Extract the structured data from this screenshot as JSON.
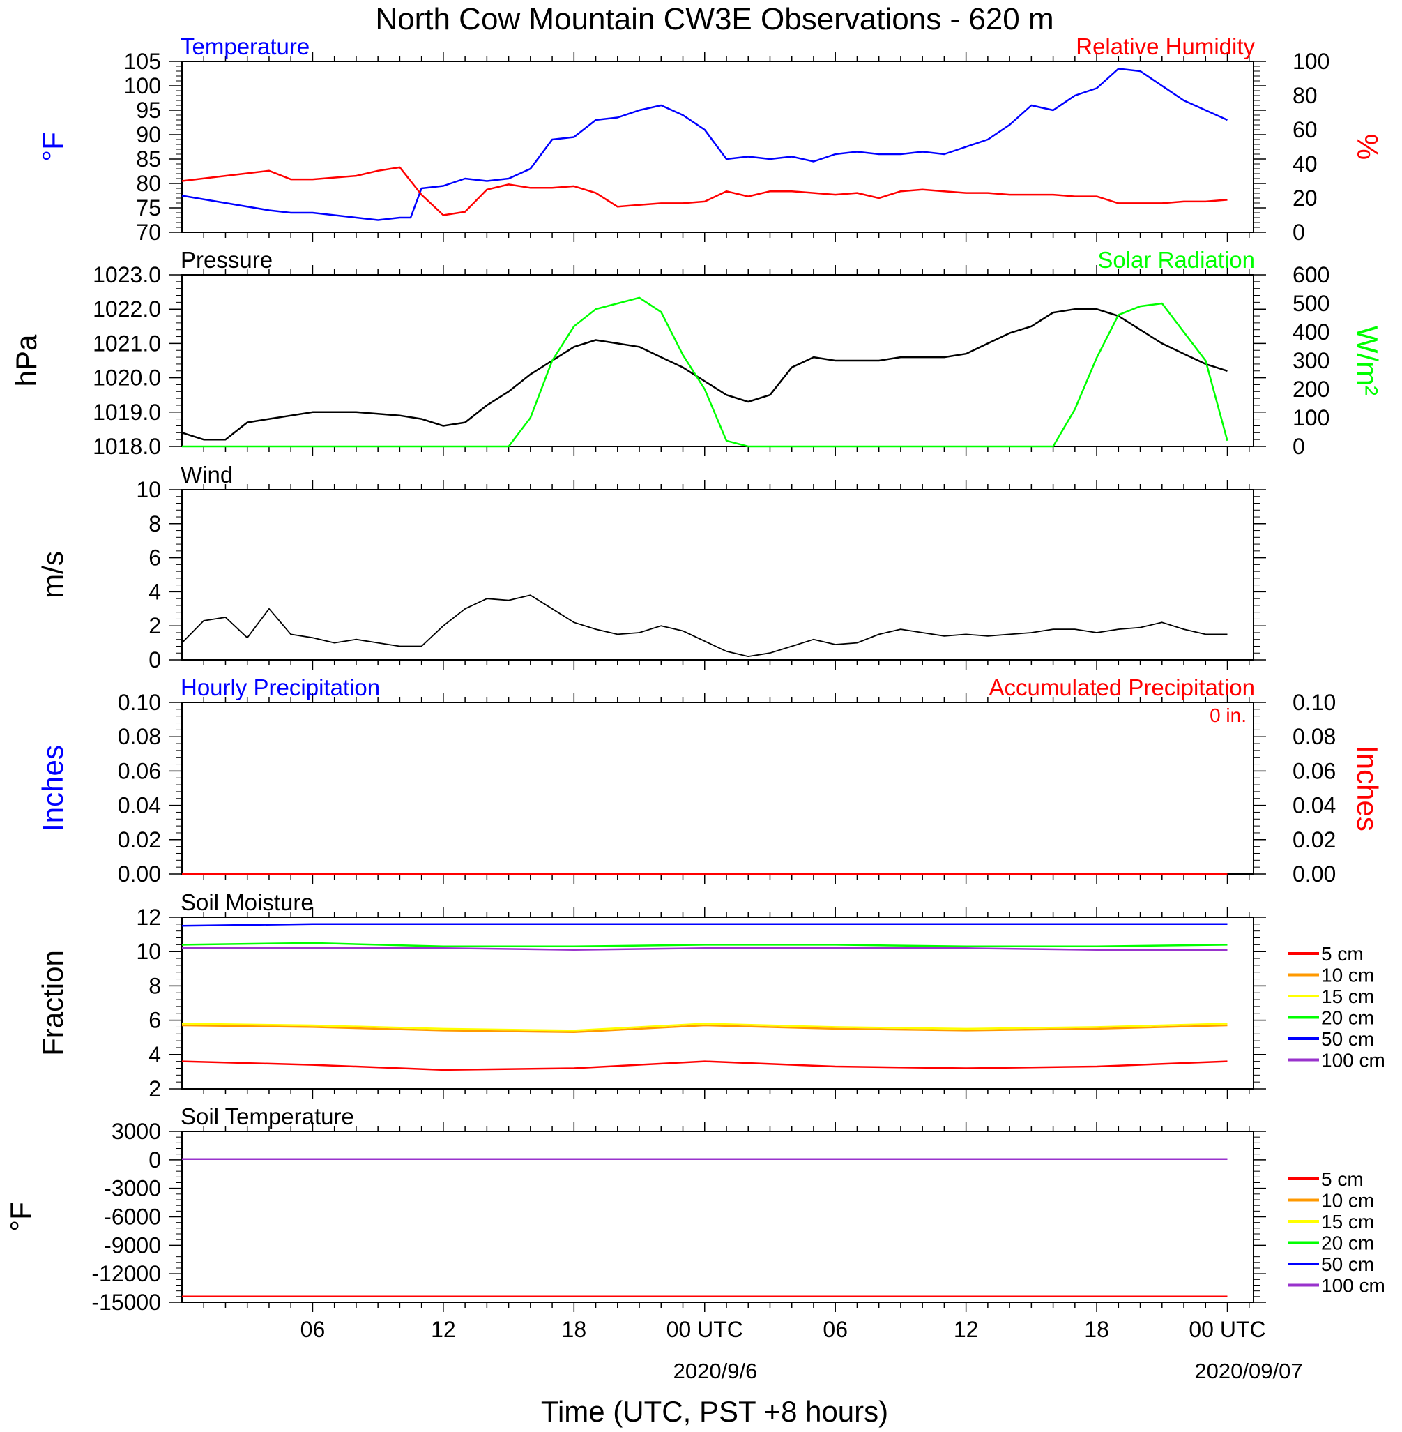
{
  "figure": {
    "title": "North Cow Mountain CW3E Observations - 620 m",
    "xlabel": "Time (UTC, PST +8 hours)",
    "x_ticks": [
      "06",
      "12",
      "18",
      "00 UTC",
      "06",
      "12",
      "18",
      "00 UTC"
    ],
    "date_labels": [
      "2020/9/6",
      "2020/09/07"
    ],
    "colors": {
      "blue": "#0000ff",
      "red": "#ff0000",
      "green": "#00ff00",
      "black": "#000000",
      "orange": "#ff9900",
      "yellow": "#ffff00",
      "purple": "#9933cc"
    }
  },
  "chart_data": [
    {
      "id": "temp_rh",
      "type": "line",
      "title_left": "Temperature",
      "title_right": "Relative Humidity",
      "ylabel_left": "°F",
      "ylabel_right": "%",
      "ylim_left": [
        70,
        105
      ],
      "yticks_left": [
        "105",
        "100",
        "95",
        "90",
        "85",
        "80",
        "75",
        "70"
      ],
      "ylim_right": [
        0,
        100
      ],
      "yticks_right": [
        "100",
        "80",
        "60",
        "40",
        "20",
        "0"
      ],
      "x_hours": [
        0,
        2,
        4,
        5,
        6,
        8,
        9,
        10,
        10.5,
        11,
        12,
        13,
        14,
        15,
        16,
        17,
        18,
        19,
        20,
        21,
        22,
        23,
        24,
        25,
        26,
        27,
        28,
        29,
        30,
        31,
        32,
        33,
        34,
        35,
        36,
        37,
        38,
        39,
        40,
        41,
        42,
        43,
        44,
        45,
        46,
        47,
        48
      ],
      "series": [
        {
          "name": "Temperature",
          "axis": "left",
          "color": "blue",
          "values": [
            77.5,
            76,
            74.5,
            74,
            74,
            73,
            72.5,
            73,
            73,
            79,
            79.5,
            81,
            80.5,
            81,
            83,
            89,
            89.5,
            93,
            93.5,
            95,
            96,
            94,
            91,
            85,
            85.5,
            85,
            85.5,
            84.5,
            86,
            86.5,
            86,
            86,
            86.5,
            86,
            87.5,
            89,
            92,
            96,
            95,
            98,
            99.5,
            103.5,
            103,
            100,
            97,
            95,
            93
          ]
        },
        {
          "name": "Relative Humidity",
          "axis": "right",
          "color": "red",
          "values": [
            30,
            33,
            36,
            31,
            31,
            33,
            36,
            38,
            30,
            22,
            10,
            12,
            25,
            28,
            26,
            26,
            27,
            23,
            15,
            16,
            17,
            17,
            18,
            24,
            21,
            24,
            24,
            23,
            22,
            23,
            20,
            24,
            25,
            24,
            23,
            23,
            22,
            22,
            22,
            21,
            21,
            17,
            17,
            17,
            18,
            18,
            19
          ]
        }
      ]
    },
    {
      "id": "pressure_solar",
      "type": "line",
      "title_left": "Pressure",
      "title_right": "Solar Radiation",
      "ylabel_left": "hPa",
      "ylabel_right": "W/m²",
      "ylim_left": [
        1018,
        1023
      ],
      "yticks_left": [
        "1023.0",
        "1022.0",
        "1021.0",
        "1020.0",
        "1019.0",
        "1018.0"
      ],
      "ylim_right": [
        0,
        600
      ],
      "yticks_right": [
        "600",
        "500",
        "400",
        "300",
        "200",
        "100",
        "0"
      ],
      "x_hours": [
        0,
        1,
        2,
        3,
        4,
        6,
        8,
        10,
        11,
        12,
        13,
        14,
        15,
        16,
        17,
        18,
        19,
        20,
        21,
        22,
        23,
        24,
        25,
        26,
        27,
        28,
        29,
        30,
        31,
        32,
        33,
        34,
        35,
        36,
        37,
        38,
        39,
        40,
        41,
        42,
        43,
        44,
        45,
        46,
        47,
        48
      ],
      "series": [
        {
          "name": "Pressure",
          "axis": "left",
          "color": "black",
          "values": [
            1018.4,
            1018.2,
            1018.2,
            1018.7,
            1018.8,
            1019.0,
            1019.0,
            1018.9,
            1018.8,
            1018.6,
            1018.7,
            1019.2,
            1019.6,
            1020.1,
            1020.5,
            1020.9,
            1021.1,
            1021.0,
            1020.9,
            1020.6,
            1020.3,
            1019.9,
            1019.5,
            1019.3,
            1019.5,
            1020.3,
            1020.6,
            1020.5,
            1020.5,
            1020.5,
            1020.6,
            1020.6,
            1020.6,
            1020.7,
            1021.0,
            1021.3,
            1021.5,
            1021.9,
            1022.0,
            1022.0,
            1021.8,
            1021.4,
            1021.0,
            1020.7,
            1020.4,
            1020.2
          ]
        },
        {
          "name": "Solar Radiation",
          "axis": "right",
          "color": "green",
          "values": [
            0,
            0,
            0,
            0,
            0,
            0,
            0,
            0,
            0,
            0,
            0,
            0,
            0,
            100,
            300,
            420,
            480,
            500,
            520,
            470,
            320,
            200,
            20,
            0,
            0,
            0,
            0,
            0,
            0,
            0,
            0,
            0,
            0,
            0,
            0,
            0,
            0,
            0,
            130,
            310,
            460,
            490,
            500,
            400,
            300,
            20
          ]
        }
      ]
    },
    {
      "id": "wind",
      "type": "line",
      "title_left": "Wind",
      "ylabel_left": "m/s",
      "ylim_left": [
        0,
        10
      ],
      "yticks_left": [
        "10",
        "8",
        "6",
        "4",
        "2",
        "0"
      ],
      "x_hours": [
        0,
        1,
        2,
        3,
        4,
        5,
        6,
        7,
        8,
        9,
        10,
        11,
        12,
        13,
        14,
        15,
        16,
        17,
        18,
        19,
        20,
        21,
        22,
        23,
        24,
        25,
        26,
        27,
        28,
        29,
        30,
        31,
        32,
        33,
        34,
        35,
        36,
        37,
        38,
        39,
        40,
        41,
        42,
        43,
        44,
        45,
        46,
        47,
        48
      ],
      "series": [
        {
          "name": "Wind speed",
          "axis": "left",
          "color": "black",
          "values": [
            1.0,
            2.3,
            2.5,
            1.3,
            3.0,
            1.5,
            1.3,
            1.0,
            1.2,
            1.0,
            0.8,
            0.8,
            2.0,
            3.0,
            3.6,
            3.5,
            3.8,
            3.0,
            2.2,
            1.8,
            1.5,
            1.6,
            2.0,
            1.7,
            1.1,
            0.5,
            0.2,
            0.4,
            0.8,
            1.2,
            0.9,
            1.0,
            1.5,
            1.8,
            1.6,
            1.4,
            1.5,
            1.4,
            1.5,
            1.6,
            1.8,
            1.8,
            1.6,
            1.8,
            1.9,
            2.2,
            1.8,
            1.5,
            1.5
          ]
        }
      ]
    },
    {
      "id": "precip",
      "type": "line",
      "title_left": "Hourly Precipitation",
      "title_right": "Accumulated Precipitation",
      "annotation": "0 in.",
      "ylabel_left": "Inches",
      "ylabel_right": "Inches",
      "ylim_left": [
        0,
        0.1
      ],
      "yticks_left": [
        "0.10",
        "0.08",
        "0.06",
        "0.04",
        "0.02",
        "0.00"
      ],
      "yticks_right": [
        "0.10",
        "0.08",
        "0.06",
        "0.04",
        "0.02",
        "0.00"
      ],
      "x_hours": [
        0,
        48
      ],
      "series": [
        {
          "name": "Accumulated Precipitation",
          "axis": "left",
          "color": "red",
          "values": [
            0,
            0
          ]
        }
      ]
    },
    {
      "id": "soil_moisture",
      "type": "line",
      "title_left": "Soil Moisture",
      "ylabel_left": "Fraction",
      "ylim_left": [
        2,
        12
      ],
      "yticks_left": [
        "12",
        "10",
        "8",
        "6",
        "4",
        "2"
      ],
      "legend": [
        "5 cm",
        "10 cm",
        "15 cm",
        "20 cm",
        "50 cm",
        "100 cm"
      ],
      "legend_colors": [
        "red",
        "orange",
        "yellow",
        "green",
        "blue",
        "purple"
      ],
      "x_hours": [
        0,
        6,
        12,
        18,
        24,
        30,
        36,
        42,
        48
      ],
      "series": [
        {
          "name": "5 cm",
          "axis": "left",
          "color": "red",
          "values": [
            3.6,
            3.4,
            3.1,
            3.2,
            3.6,
            3.3,
            3.2,
            3.3,
            3.6
          ]
        },
        {
          "name": "10 cm",
          "axis": "left",
          "color": "orange",
          "values": [
            5.7,
            5.6,
            5.4,
            5.3,
            5.7,
            5.5,
            5.4,
            5.5,
            5.7
          ]
        },
        {
          "name": "15 cm",
          "axis": "left",
          "color": "yellow",
          "values": [
            5.8,
            5.7,
            5.5,
            5.4,
            5.8,
            5.6,
            5.5,
            5.6,
            5.8
          ]
        },
        {
          "name": "20 cm",
          "axis": "left",
          "color": "green",
          "values": [
            10.4,
            10.5,
            10.3,
            10.3,
            10.4,
            10.4,
            10.3,
            10.3,
            10.4
          ]
        },
        {
          "name": "50 cm",
          "axis": "left",
          "color": "blue",
          "values": [
            11.5,
            11.6,
            11.6,
            11.6,
            11.6,
            11.6,
            11.6,
            11.6,
            11.6
          ]
        },
        {
          "name": "100 cm",
          "axis": "left",
          "color": "purple",
          "values": [
            10.2,
            10.2,
            10.2,
            10.1,
            10.2,
            10.2,
            10.2,
            10.1,
            10.1
          ]
        }
      ]
    },
    {
      "id": "soil_temp",
      "type": "line",
      "title_left": "Soil Temperature",
      "ylabel_left": "°F",
      "ylim_left": [
        -15000,
        3000
      ],
      "yticks_left": [
        "3000",
        "0",
        "-3000",
        "-6000",
        "-9000",
        "-12000",
        "-15000"
      ],
      "legend": [
        "5 cm",
        "10 cm",
        "15 cm",
        "20 cm",
        "50 cm",
        "100 cm"
      ],
      "legend_colors": [
        "red",
        "orange",
        "yellow",
        "green",
        "blue",
        "purple"
      ],
      "x_hours": [
        0,
        48
      ],
      "series": [
        {
          "name": "5 cm",
          "axis": "left",
          "color": "red",
          "values": [
            -14400,
            -14400
          ]
        },
        {
          "name": "100 cm",
          "axis": "left",
          "color": "purple",
          "values": [
            80,
            80
          ]
        }
      ]
    }
  ]
}
